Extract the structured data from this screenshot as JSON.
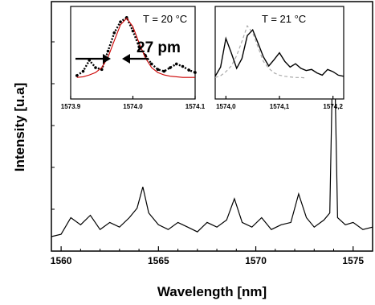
{
  "chart_data": [
    {
      "type": "line",
      "panel": "main",
      "title": "",
      "xlabel": "Wavelength [nm]",
      "ylabel": "Intensity [u.a]",
      "xlim": [
        1559.5,
        1576
      ],
      "ylim": [
        0,
        1
      ],
      "xticks": [
        1560,
        1565,
        1570,
        1575
      ],
      "xtick_labels": [
        "1560",
        "1565",
        "1570",
        "1575"
      ],
      "grid": false,
      "series": [
        {
          "color": "#000000",
          "x": [
            1559.5,
            1560.0,
            1560.5,
            1561.0,
            1561.5,
            1562.0,
            1562.5,
            1563.0,
            1563.5,
            1563.9,
            1564.2,
            1564.5,
            1565.0,
            1565.5,
            1566.0,
            1566.5,
            1567.0,
            1567.5,
            1568.0,
            1568.5,
            1568.9,
            1569.3,
            1569.8,
            1570.3,
            1570.8,
            1571.3,
            1571.8,
            1572.2,
            1572.6,
            1573.0,
            1573.5,
            1573.8,
            1574.0,
            1574.2,
            1574.6,
            1575.0,
            1575.5,
            1576.0
          ],
          "y": [
            0.04,
            0.05,
            0.12,
            0.09,
            0.13,
            0.07,
            0.1,
            0.08,
            0.12,
            0.16,
            0.25,
            0.14,
            0.09,
            0.07,
            0.1,
            0.08,
            0.06,
            0.1,
            0.08,
            0.11,
            0.2,
            0.1,
            0.08,
            0.12,
            0.07,
            0.09,
            0.1,
            0.22,
            0.12,
            0.08,
            0.11,
            0.14,
            1.0,
            0.12,
            0.09,
            0.1,
            0.07,
            0.08
          ]
        }
      ]
    },
    {
      "type": "line",
      "panel": "inset-left",
      "title": "T = 20 °C",
      "xlim": [
        1573.9,
        1574.1
      ],
      "ylim": [
        0,
        1
      ],
      "xticks": [
        1573.9,
        1574.0,
        1574.1
      ],
      "xtick_labels": [
        "1573.9",
        "1574.0",
        "1574.1"
      ],
      "annotation": "27 pm",
      "series": [
        {
          "style": "dotted-markers",
          "color": "#000000",
          "x": [
            1573.91,
            1573.92,
            1573.93,
            1573.94,
            1573.95,
            1573.96,
            1573.97,
            1573.98,
            1573.99,
            1574.0,
            1574.01,
            1574.02,
            1574.03,
            1574.04,
            1574.05,
            1574.06,
            1574.07,
            1574.08,
            1574.09,
            1574.1
          ],
          "y": [
            0.05,
            0.12,
            0.3,
            0.18,
            0.15,
            0.45,
            0.75,
            0.93,
            1.0,
            0.78,
            0.52,
            0.38,
            0.24,
            0.15,
            0.12,
            0.18,
            0.24,
            0.2,
            0.14,
            0.1
          ]
        },
        {
          "style": "fit",
          "color": "#cc0000",
          "x": [
            1573.91,
            1573.92,
            1573.93,
            1573.94,
            1573.95,
            1573.96,
            1573.97,
            1573.98,
            1573.99,
            1574.0,
            1574.01,
            1574.02,
            1574.03,
            1574.04,
            1574.05,
            1574.06,
            1574.07,
            1574.08,
            1574.09,
            1574.1
          ],
          "y": [
            0.02,
            0.03,
            0.06,
            0.1,
            0.18,
            0.35,
            0.62,
            0.88,
            0.99,
            0.85,
            0.58,
            0.34,
            0.18,
            0.1,
            0.06,
            0.04,
            0.03,
            0.02,
            0.02,
            0.02
          ]
        }
      ]
    },
    {
      "type": "line",
      "panel": "inset-right",
      "title": "T = 21 °C",
      "xlim": [
        1573.98,
        1574.22
      ],
      "ylim": [
        0,
        1
      ],
      "xticks": [
        1574.0,
        1574.1,
        1574.2
      ],
      "xtick_labels": [
        "1574,0",
        "1574,1",
        "1574,2"
      ],
      "series": [
        {
          "style": "solid",
          "color": "#000000",
          "x": [
            1573.98,
            1573.99,
            1574.0,
            1574.01,
            1574.02,
            1574.03,
            1574.04,
            1574.05,
            1574.06,
            1574.07,
            1574.08,
            1574.09,
            1574.1,
            1574.11,
            1574.12,
            1574.13,
            1574.14,
            1574.15,
            1574.16,
            1574.17,
            1574.18,
            1574.19,
            1574.2,
            1574.21,
            1574.22
          ],
          "y": [
            0.04,
            0.2,
            0.7,
            0.45,
            0.18,
            0.35,
            0.75,
            0.85,
            0.62,
            0.38,
            0.22,
            0.33,
            0.45,
            0.3,
            0.2,
            0.26,
            0.18,
            0.14,
            0.16,
            0.1,
            0.06,
            0.16,
            0.12,
            0.06,
            0.04
          ]
        },
        {
          "style": "dashed",
          "color": "#aaaaaa",
          "x": [
            1573.98,
            1573.99,
            1574.0,
            1574.01,
            1574.02,
            1574.03,
            1574.04,
            1574.05,
            1574.06,
            1574.07,
            1574.08,
            1574.09,
            1574.1,
            1574.11,
            1574.12,
            1574.13,
            1574.14,
            1574.15
          ],
          "y": [
            0.02,
            0.05,
            0.12,
            0.22,
            0.4,
            0.65,
            0.92,
            0.8,
            0.55,
            0.3,
            0.18,
            0.1,
            0.06,
            0.04,
            0.03,
            0.02,
            0.02,
            0.01
          ]
        }
      ]
    }
  ]
}
